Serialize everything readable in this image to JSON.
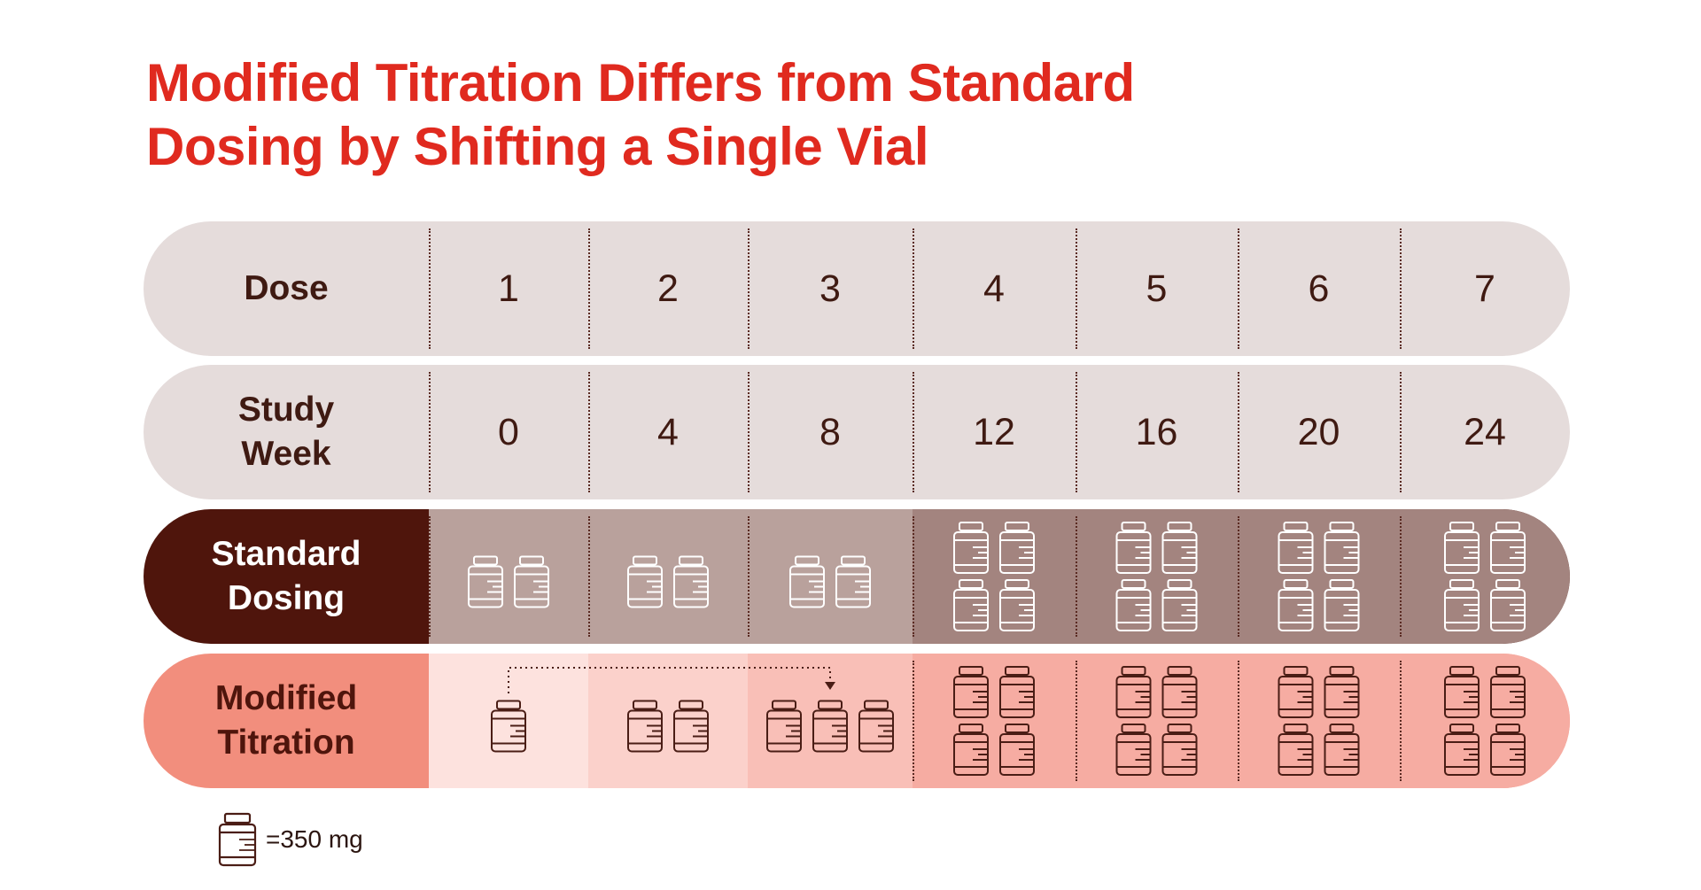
{
  "title": {
    "line1": "Modified Titration Differs from Standard",
    "line2": "Dosing by Shifting a Single Vial"
  },
  "colors": {
    "title": "#e02a1f",
    "light_row": "#e5dcdb",
    "standard_label": "#4f150c",
    "standard_cells_low": "#b9a19c",
    "standard_cells_high": "#a3847f",
    "modified_label": "#f28e7d",
    "modified_cells": [
      "#fde2de",
      "#fbd1cb",
      "#f9bfb7",
      "#f6aca2",
      "#f6aca2",
      "#f6aca2",
      "#f6aca2"
    ],
    "vial_light": "#ffffff",
    "vial_dark": "#4a1d15"
  },
  "rows": {
    "dose": {
      "label": "Dose",
      "values": [
        "1",
        "2",
        "3",
        "4",
        "5",
        "6",
        "7"
      ]
    },
    "week": {
      "label_line1": "Study",
      "label_line2": "Week",
      "values": [
        "0",
        "4",
        "8",
        "12",
        "16",
        "20",
        "24"
      ]
    },
    "standard": {
      "label_line1": "Standard",
      "label_line2": "Dosing",
      "vials": [
        2,
        2,
        2,
        4,
        4,
        4,
        4
      ]
    },
    "modified": {
      "label_line1": "Modified",
      "label_line2": "Titration",
      "vials": [
        1,
        2,
        3,
        4,
        4,
        4,
        4
      ]
    }
  },
  "annotation": {
    "type": "dotted-arrow",
    "from_dose": "1",
    "to_dose": "3"
  },
  "legend": {
    "icon": "vial-icon",
    "text": "=350 mg"
  }
}
